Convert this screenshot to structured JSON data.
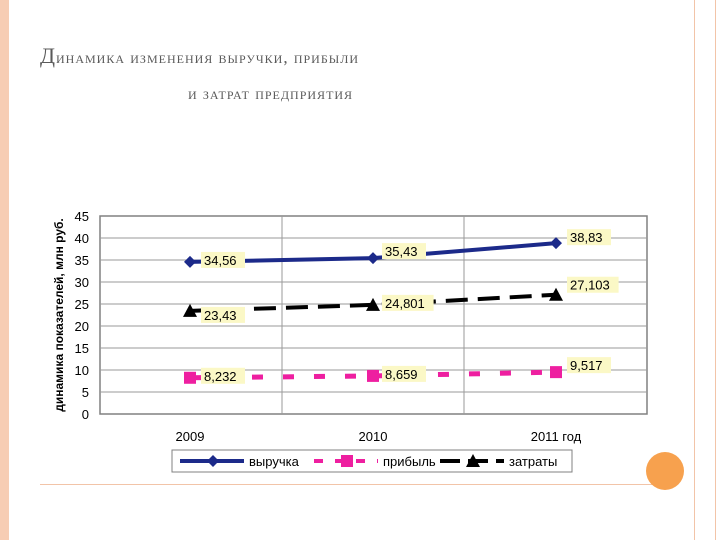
{
  "slide": {
    "title_line1": "Динамика изменения выручки, прибыли",
    "title_line2": "и затрат предприятия"
  },
  "chart_data": {
    "type": "line",
    "categories": [
      "2009",
      "2010",
      "2011 год"
    ],
    "ylabel": "динамика показателей, млн руб.",
    "ylim": [
      0,
      45
    ],
    "yticks": [
      "0",
      "5",
      "10",
      "15",
      "20",
      "25",
      "30",
      "35",
      "40",
      "45"
    ],
    "grid": true,
    "legend_position": "bottom",
    "series": [
      {
        "name": "выручка",
        "values": [
          34.56,
          35.43,
          38.83
        ],
        "labels": [
          "34,56",
          "35,43",
          "38,83"
        ],
        "color": "#1c2a8a",
        "style": "solid",
        "marker": "diamond"
      },
      {
        "name": "прибыль",
        "values": [
          8.232,
          8.659,
          9.517
        ],
        "labels": [
          "8,232",
          "8,659",
          "9,517"
        ],
        "color": "#ee1fa0",
        "style": "dashed",
        "marker": "square"
      },
      {
        "name": "затраты",
        "values": [
          23.43,
          24.801,
          27.103
        ],
        "labels": [
          "23,43",
          "24,801",
          "27,103"
        ],
        "color": "#000000",
        "style": "dashed",
        "marker": "triangle"
      }
    ]
  },
  "colors": {
    "accent": "#f7a14e",
    "label_bg": "#fbf8c6",
    "frame": "#808080"
  }
}
